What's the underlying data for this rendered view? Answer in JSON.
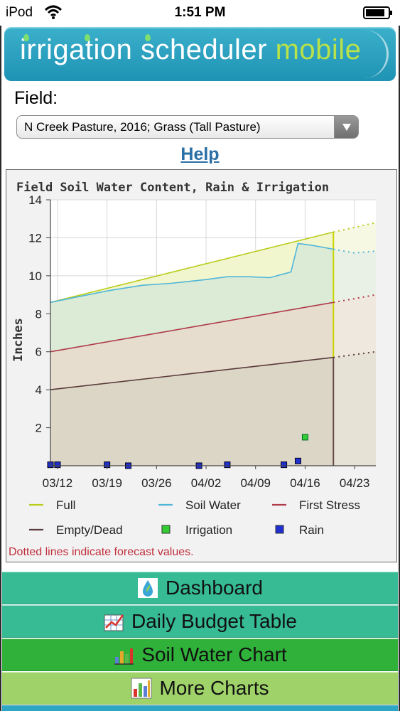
{
  "status_bar": {
    "carrier": "iPod",
    "time": "1:51 PM"
  },
  "header": {
    "title_main": "irrigation scheduler",
    "title_accent": "mobile"
  },
  "field": {
    "label": "Field:",
    "selected": "N Creek Pasture, 2016; Grass (Tall Pasture)"
  },
  "help_label": "Help",
  "chart_data": {
    "type": "line",
    "title": "Field Soil Water Content, Rain & Irrigation",
    "ylabel": "Inches",
    "xlabel": "",
    "ylim": [
      0,
      14
    ],
    "yticks": [
      2,
      4,
      6,
      8,
      10,
      12,
      14
    ],
    "xlim": [
      "03/11",
      "04/26"
    ],
    "xticks": [
      "03/12",
      "03/19",
      "03/26",
      "04/02",
      "04/09",
      "04/16",
      "04/23"
    ],
    "current_date": "04/20",
    "grid": true,
    "legend_position": "bottom",
    "series": [
      {
        "name": "Full",
        "color": "#b9cc18",
        "style": "line",
        "observed": [
          [
            "03/11",
            8.6
          ],
          [
            "04/20",
            12.3
          ]
        ],
        "forecast": [
          [
            "04/20",
            12.3
          ],
          [
            "04/26",
            12.8
          ]
        ]
      },
      {
        "name": "Soil Water",
        "color": "#4fb6d8",
        "style": "line",
        "observed": [
          [
            "03/11",
            8.6
          ],
          [
            "03/15",
            8.9
          ],
          [
            "03/19",
            9.2
          ],
          [
            "03/24",
            9.5
          ],
          [
            "03/28",
            9.6
          ],
          [
            "04/02",
            9.8
          ],
          [
            "04/05",
            9.95
          ],
          [
            "04/08",
            9.95
          ],
          [
            "04/11",
            9.9
          ],
          [
            "04/13",
            10.1
          ],
          [
            "04/14",
            10.2
          ],
          [
            "04/15",
            11.7
          ],
          [
            "04/17",
            11.6
          ],
          [
            "04/20",
            11.4
          ]
        ],
        "forecast": [
          [
            "04/20",
            11.4
          ],
          [
            "04/23",
            11.2
          ],
          [
            "04/26",
            11.3
          ]
        ]
      },
      {
        "name": "First Stress",
        "color": "#b03a4a",
        "style": "line",
        "observed": [
          [
            "03/11",
            6.0
          ],
          [
            "04/20",
            8.6
          ]
        ],
        "forecast": [
          [
            "04/20",
            8.6
          ],
          [
            "04/26",
            9.0
          ]
        ]
      },
      {
        "name": "Empty/Dead",
        "color": "#5a3a3a",
        "style": "line",
        "observed": [
          [
            "03/11",
            4.0
          ],
          [
            "04/20",
            5.7
          ]
        ],
        "forecast": [
          [
            "04/20",
            5.7
          ],
          [
            "04/26",
            6.0
          ]
        ]
      },
      {
        "name": "Irrigation",
        "color": "#33cc33",
        "style": "marker",
        "points": [
          [
            "04/16",
            1.5
          ]
        ]
      },
      {
        "name": "Rain",
        "color": "#1f2fd0",
        "style": "marker",
        "points": [
          [
            "03/11",
            0.05
          ],
          [
            "03/12",
            0.05
          ],
          [
            "03/19",
            0.05
          ],
          [
            "03/22",
            0.0
          ],
          [
            "04/01",
            0.0
          ],
          [
            "04/05",
            0.05
          ],
          [
            "04/13",
            0.05
          ],
          [
            "04/15",
            0.25
          ]
        ]
      }
    ],
    "legend": [
      "Full",
      "Soil Water",
      "First Stress",
      "Empty/Dead",
      "Irrigation",
      "Rain"
    ],
    "footnote": "Dotted lines indicate forecast values."
  },
  "nav": {
    "dashboard": "Dashboard",
    "daily_budget": "Daily Budget Table",
    "soil_water_chart": "Soil Water Chart",
    "more_charts": "More Charts"
  }
}
